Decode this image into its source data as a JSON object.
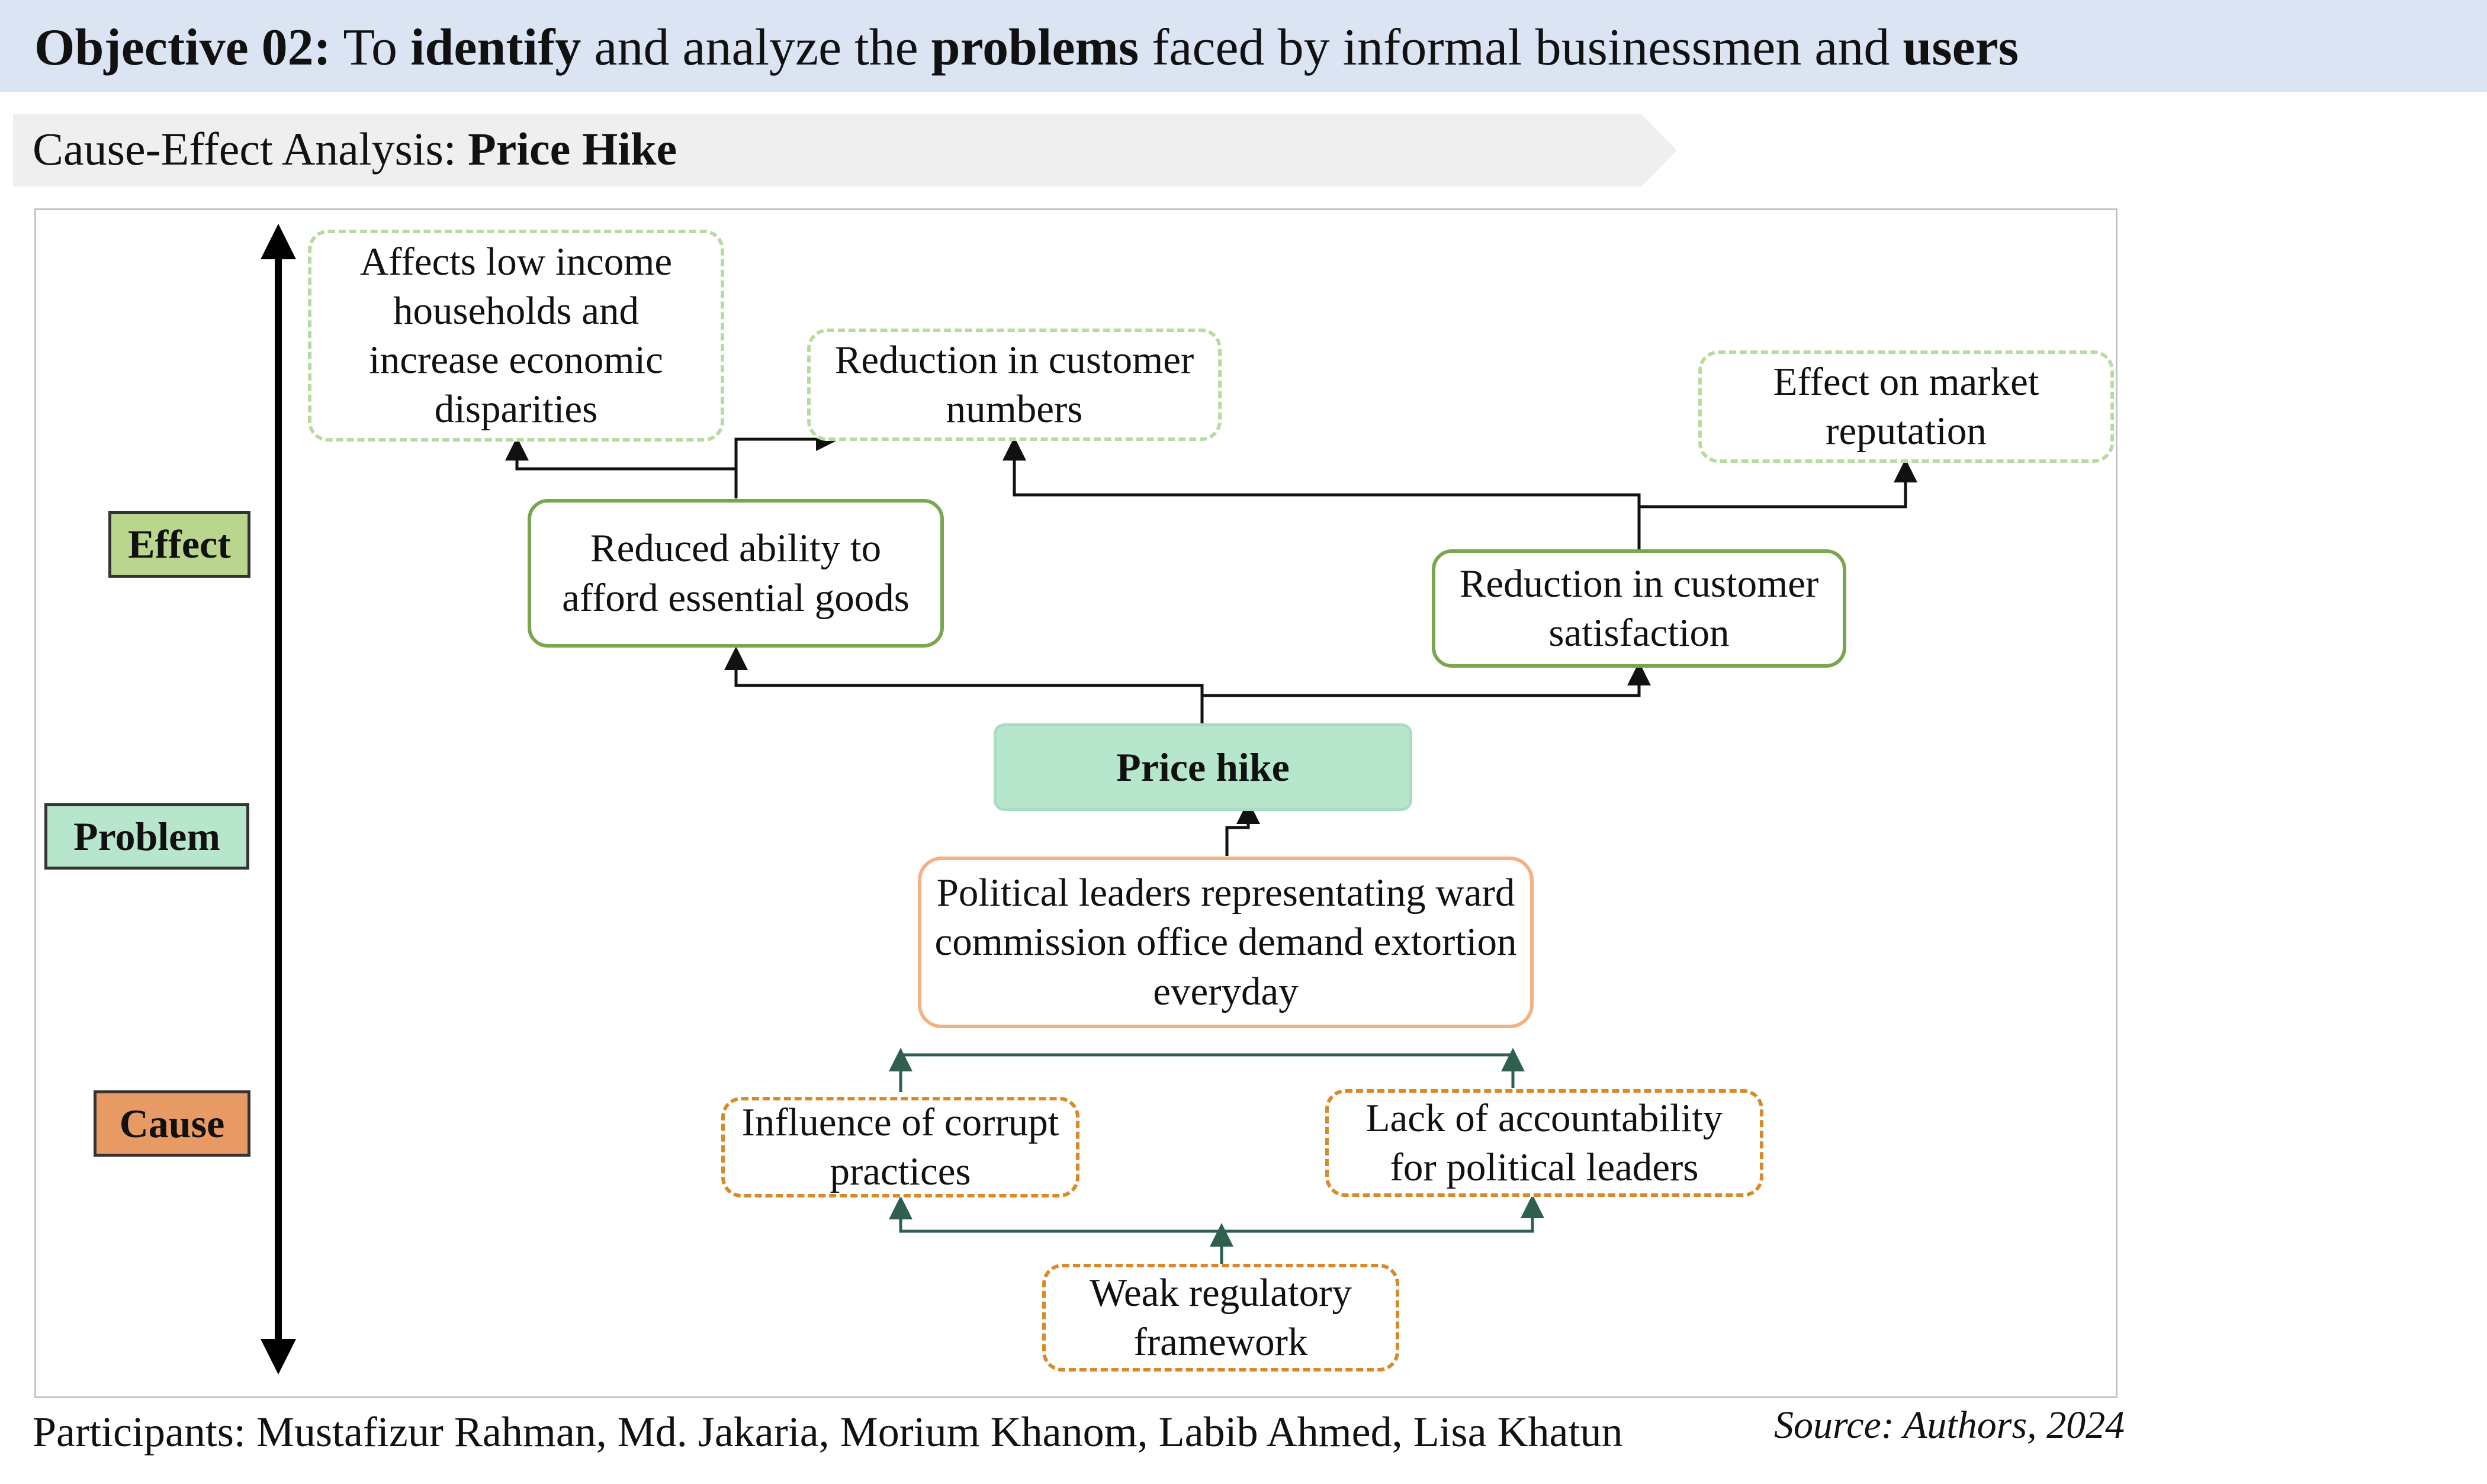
{
  "header": {
    "title_parts": [
      {
        "text": "Objective 02:",
        "bold": true
      },
      {
        "text": " To ",
        "bold": false
      },
      {
        "text": "identify",
        "bold": true
      },
      {
        "text": " and analyze the ",
        "bold": false
      },
      {
        "text": "problems",
        "bold": true
      },
      {
        "text": " faced by informal businessmen and ",
        "bold": false
      },
      {
        "text": "users",
        "bold": true
      }
    ],
    "subtitle_prefix": "Cause-Effect Analysis: ",
    "subtitle_bold": "Price Hike"
  },
  "levels": {
    "effect": "Effect",
    "problem": "Problem",
    "cause": "Cause"
  },
  "nodes": {
    "affects_low_income": "Affects low income households and increase economic disparities",
    "reduction_customer_numbers": "Reduction in customer numbers",
    "effect_market_reputation": "Effect on market reputation",
    "reduced_ability": "Reduced ability to afford essential goods",
    "reduction_customer_satisfaction": "Reduction in customer satisfaction",
    "price_hike": "Price hike",
    "political_leaders": "Political leaders representating ward commission office demand extortion everyday",
    "influence_corrupt": "Influence of corrupt practices",
    "lack_accountability": "Lack of accountability for political leaders",
    "weak_regulatory": "Weak regulatory framework"
  },
  "footer": {
    "participants": "Participants: Mustafizur Rahman, Md. Jakaria, Morium Khanom, Labib Ahmed, Lisa Khatun",
    "source": "Source: Authors, 2024"
  },
  "colors": {
    "title_bar": "#dbe4f2",
    "effect_tag": "#b9d58e",
    "problem_tag": "#b7e6cd",
    "cause_tag": "#e79a64",
    "effect_border": "#7aa650",
    "effect_dashed_border": "#b7dca2",
    "cause_border": "#f4b183",
    "cause_dashed_border": "#d88a28",
    "cause_arrow": "#2f5f4f"
  }
}
